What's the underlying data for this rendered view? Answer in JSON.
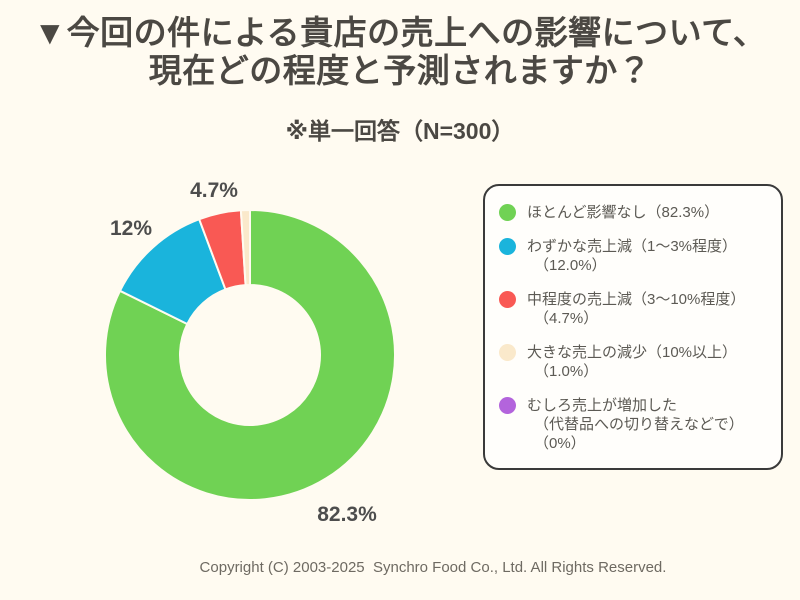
{
  "page": {
    "background": "#FFFBF1"
  },
  "title": {
    "line1": "▼今回の件による貴店の売上への影響について、",
    "line2": "現在どの程度と予測されますか？"
  },
  "subtitle": "※単一回答（N=300）",
  "footer": {
    "copyright": "Copyright (C) 2003-2025  Synchro Food Co., Ltd. All Rights Reserved."
  },
  "colors": {
    "background": "#FFFBF1",
    "title_text": "#4B4843",
    "label_text": "#4D4D4D",
    "legend_text": "#5C5A54",
    "legend_border": "#3A3A3A",
    "legend_background": "#FFFEFB",
    "green": "#70D254",
    "blue": "#1AB4DC",
    "red": "#F95954",
    "cream": "#FAE9CB",
    "purple": "#B364DC"
  },
  "chart_data": {
    "type": "pie",
    "subtype": "donut",
    "title": "今回の件による貴店の売上への影響について、現在どの程度と予測されますか？",
    "note": "※単一回答",
    "n": 300,
    "unit": "%",
    "start_angle_deg": 0,
    "direction": "clockwise",
    "inner_radius_ratio": 0.48,
    "legend_position": "right",
    "categories": [
      "ほとんど影響なし",
      "わずかな売上減（1〜3%程度）",
      "中程度の売上減（3〜10%程度）",
      "大きな売上の減少（10%以上）",
      "むしろ売上が増加した（代替品への切り替えなどで）"
    ],
    "values": [
      82.3,
      12.0,
      4.7,
      1.0,
      0
    ],
    "slices": [
      {
        "label": "ほとんど影響なし",
        "value": 82.3,
        "display_label": "82.3%",
        "color": "#70D254"
      },
      {
        "label": "わずかな売上減（1〜3%程度）",
        "value": 12.0,
        "display_label": "12%",
        "color": "#1AB4DC"
      },
      {
        "label": "中程度の売上減（3〜10%程度）",
        "value": 4.7,
        "display_label": "4.7%",
        "color": "#F95954"
      },
      {
        "label": "大きな売上の減少（10%以上）",
        "value": 1.0,
        "display_label": "",
        "color": "#FAE9CB"
      },
      {
        "label": "むしろ売上が増加した（代替品への切り替えなどで）",
        "value": 0,
        "display_label": "",
        "color": "#B364DC"
      }
    ]
  },
  "legend": {
    "items": [
      {
        "color": "#70D254",
        "lines": [
          "ほとんど影響なし（82.3%）"
        ]
      },
      {
        "color": "#1AB4DC",
        "lines": [
          "わずかな売上減（1〜3%程度）",
          "（12.0%）"
        ]
      },
      {
        "color": "#F95954",
        "lines": [
          "中程度の売上減（3〜10%程度）",
          "（4.7%）"
        ]
      },
      {
        "color": "#FAE9CB",
        "lines": [
          "大きな売上の減少（10%以上）",
          "（1.0%）"
        ]
      },
      {
        "color": "#B364DC",
        "lines": [
          "むしろ売上が増加した",
          "（代替品への切り替えなどで）",
          "（0%）"
        ]
      }
    ]
  }
}
